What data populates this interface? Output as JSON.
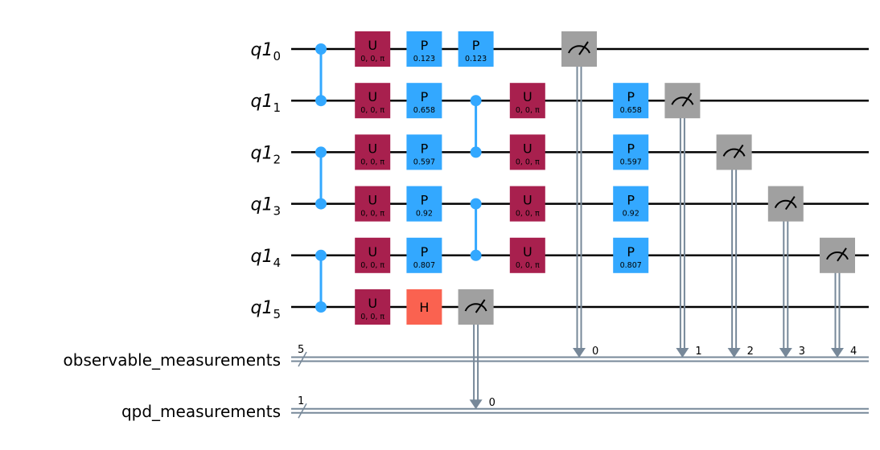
{
  "colors": {
    "U": "#A8204E",
    "P": "#33A8FF",
    "H": "#FA6250",
    "measure": "#A0A0A0",
    "control": "#33A8FF",
    "classical": "#778899",
    "wire": "#000000"
  },
  "qubits": [
    {
      "register": "q1",
      "index": "0"
    },
    {
      "register": "q1",
      "index": "1"
    },
    {
      "register": "q1",
      "index": "2"
    },
    {
      "register": "q1",
      "index": "3"
    },
    {
      "register": "q1",
      "index": "4"
    },
    {
      "register": "q1",
      "index": "5"
    }
  ],
  "clbits": [
    {
      "name": "observable_measurements",
      "size": "5"
    },
    {
      "name": "qpd_measurements",
      "size": "1"
    }
  ],
  "gates": [
    {
      "type": "cz",
      "step": 0,
      "qubits": [
        0,
        1
      ]
    },
    {
      "type": "cz",
      "step": 0,
      "qubits": [
        2,
        3
      ]
    },
    {
      "type": "cz",
      "step": 0,
      "qubits": [
        4,
        5
      ]
    },
    {
      "type": "U",
      "label": "U",
      "param": "0, 0, π",
      "step": 1,
      "qubit": 0
    },
    {
      "type": "U",
      "label": "U",
      "param": "0, 0, π",
      "step": 1,
      "qubit": 1
    },
    {
      "type": "U",
      "label": "U",
      "param": "0, 0, π",
      "step": 1,
      "qubit": 2
    },
    {
      "type": "U",
      "label": "U",
      "param": "0, 0, π",
      "step": 1,
      "qubit": 3
    },
    {
      "type": "U",
      "label": "U",
      "param": "0, 0, π",
      "step": 1,
      "qubit": 4
    },
    {
      "type": "U",
      "label": "U",
      "param": "0, 0, π",
      "step": 1,
      "qubit": 5
    },
    {
      "type": "P",
      "label": "P",
      "param": "0.123",
      "step": 2,
      "qubit": 0
    },
    {
      "type": "P",
      "label": "P",
      "param": "0.658",
      "step": 2,
      "qubit": 1
    },
    {
      "type": "P",
      "label": "P",
      "param": "0.597",
      "step": 2,
      "qubit": 2
    },
    {
      "type": "P",
      "label": "P",
      "param": "0.92",
      "step": 2,
      "qubit": 3
    },
    {
      "type": "P",
      "label": "P",
      "param": "0.807",
      "step": 2,
      "qubit": 4
    },
    {
      "type": "H",
      "label": "H",
      "step": 2,
      "qubit": 5
    },
    {
      "type": "P",
      "label": "P",
      "param": "0.123",
      "step": 3,
      "qubit": 0
    },
    {
      "type": "cz",
      "step": 3,
      "qubits": [
        1,
        2
      ]
    },
    {
      "type": "cz",
      "step": 3,
      "qubits": [
        3,
        4
      ]
    },
    {
      "type": "measure",
      "step": 3,
      "qubit": 5,
      "creg": 1,
      "bit": "0"
    },
    {
      "type": "U",
      "label": "U",
      "param": "0, 0, π",
      "step": 4,
      "qubit": 1
    },
    {
      "type": "U",
      "label": "U",
      "param": "0, 0, π",
      "step": 4,
      "qubit": 2
    },
    {
      "type": "U",
      "label": "U",
      "param": "0, 0, π",
      "step": 4,
      "qubit": 3
    },
    {
      "type": "U",
      "label": "U",
      "param": "0, 0, π",
      "step": 4,
      "qubit": 4
    },
    {
      "type": "measure",
      "step": 5,
      "qubit": 0,
      "creg": 0,
      "bit": "0"
    },
    {
      "type": "P",
      "label": "P",
      "param": "0.658",
      "step": 6,
      "qubit": 1
    },
    {
      "type": "P",
      "label": "P",
      "param": "0.597",
      "step": 6,
      "qubit": 2
    },
    {
      "type": "P",
      "label": "P",
      "param": "0.92",
      "step": 6,
      "qubit": 3
    },
    {
      "type": "P",
      "label": "P",
      "param": "0.807",
      "step": 6,
      "qubit": 4
    },
    {
      "type": "measure",
      "step": 7,
      "qubit": 1,
      "creg": 0,
      "bit": "1"
    },
    {
      "type": "measure",
      "step": 8,
      "qubit": 2,
      "creg": 0,
      "bit": "2"
    },
    {
      "type": "measure",
      "step": 9,
      "qubit": 3,
      "creg": 0,
      "bit": "3"
    },
    {
      "type": "measure",
      "step": 10,
      "qubit": 4,
      "creg": 0,
      "bit": "4"
    }
  ]
}
